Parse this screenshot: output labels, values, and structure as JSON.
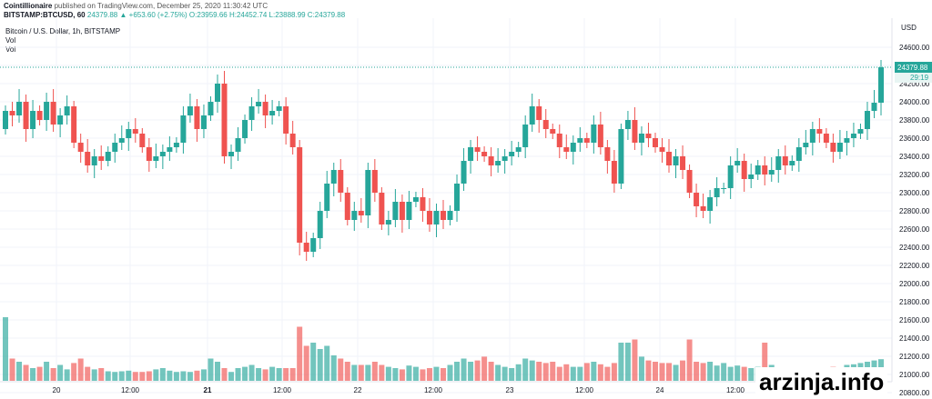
{
  "header": {
    "author": "Cointillionaire",
    "published": "published on TradingView.com, December 25, 2020 11:30:42 UTC",
    "symbol": "BITSTAMP:BTCUSD, 60",
    "last": "24379.88",
    "change": "+653.60 (+2.75%)",
    "ohlc": "O:23959.66 H:24452.74 L:23888.99 C:24379.88"
  },
  "legend": {
    "title": "Bitcoin / U.S. Dollar, 1h, BITSTAMP",
    "vol1": "Vol",
    "vol2": "Vol"
  },
  "price_axis": {
    "currency": "USD"
  },
  "price_label": {
    "value": "24379.88",
    "countdown": "29:19"
  },
  "watermark": "arzinja.info",
  "colors": {
    "up": "#26a69a",
    "down": "#ef5350",
    "grid": "#f0f3fa",
    "axis_text": "#131722"
  },
  "chart_data": {
    "type": "candlestick",
    "y_ticks": [
      "20800.00",
      "21000.00",
      "21200.00",
      "21400.00",
      "21600.00",
      "21800.00",
      "22000.00",
      "22200.00",
      "22400.00",
      "22600.00",
      "22800.00",
      "23000.00",
      "23200.00",
      "23400.00",
      "23600.00",
      "23800.00",
      "24000.00",
      "24200.00",
      "24400.00",
      "24600.00"
    ],
    "ylim": [
      20750,
      24750
    ],
    "x_ticks": [
      "20",
      "12:00",
      "21",
      "12:00",
      "22",
      "12:00",
      "23",
      "12:00",
      "24",
      "12:00"
    ],
    "bold_x_ticks": [
      "21"
    ],
    "closes": [
      23900,
      23850,
      24000,
      23700,
      23900,
      23800,
      24000,
      23750,
      23850,
      23950,
      23550,
      23450,
      23300,
      23400,
      23350,
      23450,
      23550,
      23600,
      23700,
      23650,
      23500,
      23350,
      23400,
      23450,
      23500,
      23550,
      23850,
      23950,
      23700,
      23850,
      24000,
      24200,
      23400,
      23450,
      23600,
      23800,
      23950,
      24000,
      23850,
      23900,
      23950,
      23650,
      23500,
      22450,
      22350,
      22500,
      22800,
      23100,
      23250,
      23000,
      22700,
      22800,
      22750,
      23250,
      23000,
      22650,
      22700,
      22900,
      22700,
      22900,
      22950,
      22800,
      22650,
      22800,
      22700,
      22800,
      23100,
      23350,
      23500,
      23450,
      23400,
      23300,
      23350,
      23400,
      23450,
      23500,
      23750,
      23950,
      23800,
      23700,
      23650,
      23500,
      23450,
      23550,
      23600,
      23550,
      23750,
      23500,
      23350,
      23100,
      23700,
      23800,
      23550,
      23650,
      23600,
      23500,
      23450,
      23300,
      23400,
      23250,
      23000,
      22850,
      22800,
      22950,
      23050,
      23050,
      23300,
      23350,
      23150,
      23200,
      23300,
      23200,
      23250,
      23400,
      23300,
      23350,
      23500,
      23550,
      23700,
      23650,
      23550,
      23450,
      23550,
      23600,
      23650,
      23700,
      23900,
      23990,
      24379.88
    ],
    "volumes": [
      1.0,
      0.35,
      0.3,
      0.25,
      0.2,
      0.22,
      0.3,
      0.2,
      0.25,
      0.18,
      0.28,
      0.35,
      0.22,
      0.18,
      0.2,
      0.15,
      0.14,
      0.15,
      0.16,
      0.14,
      0.14,
      0.15,
      0.18,
      0.2,
      0.16,
      0.14,
      0.15,
      0.14,
      0.16,
      0.18,
      0.35,
      0.3,
      0.2,
      0.14,
      0.2,
      0.22,
      0.25,
      0.2,
      0.18,
      0.22,
      0.2,
      0.2,
      0.2,
      0.85,
      0.55,
      0.6,
      0.5,
      0.55,
      0.4,
      0.35,
      0.3,
      0.25,
      0.25,
      0.25,
      0.3,
      0.25,
      0.22,
      0.2,
      0.18,
      0.24,
      0.22,
      0.18,
      0.2,
      0.22,
      0.2,
      0.25,
      0.3,
      0.35,
      0.3,
      0.32,
      0.38,
      0.3,
      0.25,
      0.22,
      0.2,
      0.26,
      0.35,
      0.32,
      0.3,
      0.28,
      0.3,
      0.22,
      0.26,
      0.22,
      0.22,
      0.28,
      0.3,
      0.26,
      0.22,
      0.28,
      0.6,
      0.6,
      0.65,
      0.38,
      0.32,
      0.3,
      0.28,
      0.28,
      0.25,
      0.32,
      0.65,
      0.3,
      0.28,
      0.3,
      0.24,
      0.28,
      0.22,
      0.24,
      0.22,
      0.2,
      0.22,
      0.6,
      0.25,
      0.2,
      0.18,
      0.15,
      0.18,
      0.14,
      0.15,
      0.18,
      0.2,
      0.22,
      0.2,
      0.25,
      0.26,
      0.28,
      0.3,
      0.32,
      0.34
    ]
  }
}
